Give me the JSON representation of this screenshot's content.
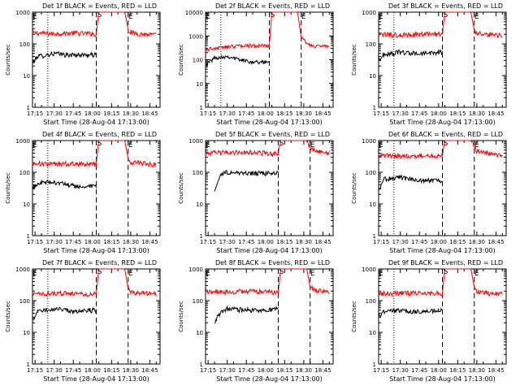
{
  "chart_data": [
    {
      "type": "line",
      "title": "Det 1f BLACK = Events, RED = LLD",
      "ylabel": "Counts/sec",
      "xlabel": "Start Time (28-Aug-04 17:13:00)",
      "xticks": [
        "17:15",
        "17:30",
        "17:45",
        "18:00",
        "18:15",
        "18:30",
        "18:45"
      ],
      "yticks": [
        "1",
        "10",
        "100",
        "1000"
      ],
      "ylim": [
        1,
        1000
      ],
      "xlim": [
        "17:13",
        "18:53"
      ],
      "markers": {
        "S": "18:03",
        "E": "18:28",
        "dotted": "17:25"
      },
      "series": [
        {
          "name": "RED = LLD",
          "color": "#ff0000",
          "times": [
            "17:13",
            "17:30",
            "17:45",
            "18:00",
            "18:03",
            "18:05",
            "18:25",
            "18:28",
            "18:30",
            "18:40",
            "18:50"
          ],
          "values": [
            220,
            210,
            220,
            210,
            200,
            1200,
            1200,
            280,
            230,
            200,
            190
          ]
        },
        {
          "name": "BLACK = Events",
          "color": "#000000",
          "times": [
            "17:13",
            "17:17",
            "17:30",
            "17:40",
            "17:50",
            "18:00",
            "18:03"
          ],
          "values": [
            25,
            40,
            50,
            45,
            45,
            45,
            45
          ]
        }
      ]
    },
    {
      "type": "line",
      "title": "Det 2f BLACK = Events, RED = LLD",
      "ylabel": "Counts/sec",
      "xlabel": "Start Time (28-Aug-04 17:13:00)",
      "xticks": [
        "17:15",
        "17:30",
        "17:45",
        "18:00",
        "18:15",
        "18:30",
        "18:45"
      ],
      "yticks": [
        "1",
        "10",
        "100",
        "1000",
        "10000"
      ],
      "ylim": [
        1,
        10000
      ],
      "xlim": [
        "17:13",
        "18:53"
      ],
      "markers": {
        "S": "18:03",
        "E": "18:28",
        "dotted": "17:25"
      },
      "series": [
        {
          "name": "RED = LLD",
          "color": "#ff0000",
          "times": [
            "17:13",
            "17:20",
            "17:30",
            "17:45",
            "18:00",
            "18:03",
            "18:05",
            "18:25",
            "18:28",
            "18:35",
            "18:50"
          ],
          "values": [
            270,
            300,
            350,
            400,
            380,
            400,
            12000,
            12000,
            800,
            400,
            350
          ]
        },
        {
          "name": "BLACK = Events",
          "color": "#000000",
          "times": [
            "17:13",
            "17:20",
            "17:30",
            "17:40",
            "17:50",
            "18:00",
            "18:03"
          ],
          "values": [
            60,
            120,
            140,
            100,
            80,
            80,
            90
          ]
        }
      ]
    },
    {
      "type": "line",
      "title": "Det 3f BLACK = Events, RED = LLD",
      "ylabel": "Counts/sec",
      "xlabel": "Start Time (28-Aug-04 17:13:00)",
      "xticks": [
        "17:15",
        "17:30",
        "17:45",
        "18:00",
        "18:15",
        "18:30",
        "18:45"
      ],
      "yticks": [
        "1",
        "10",
        "100",
        "1000"
      ],
      "ylim": [
        1,
        1000
      ],
      "xlim": [
        "17:13",
        "18:53"
      ],
      "markers": {
        "S": "18:03",
        "E": "18:28",
        "dotted": "17:25"
      },
      "series": [
        {
          "name": "RED = LLD",
          "color": "#ff0000",
          "times": [
            "17:13",
            "17:30",
            "17:45",
            "18:00",
            "18:03",
            "18:05",
            "18:25",
            "18:28",
            "18:30",
            "18:40",
            "18:50"
          ],
          "values": [
            200,
            190,
            200,
            210,
            200,
            1200,
            1200,
            260,
            220,
            200,
            180
          ]
        },
        {
          "name": "BLACK = Events",
          "color": "#000000",
          "times": [
            "17:13",
            "17:17",
            "17:30",
            "17:40",
            "17:50",
            "18:00",
            "18:03"
          ],
          "values": [
            30,
            45,
            55,
            50,
            50,
            55,
            55
          ]
        }
      ]
    },
    {
      "type": "line",
      "title": "Det 4f BLACK = Events, RED = LLD",
      "ylabel": "Counts/sec",
      "xlabel": "Start Time (28-Aug-04 17:13:00)",
      "xticks": [
        "17:15",
        "17:30",
        "17:45",
        "18:00",
        "18:15",
        "18:30",
        "18:45"
      ],
      "yticks": [
        "1",
        "10",
        "100",
        "1000"
      ],
      "ylim": [
        1,
        1000
      ],
      "xlim": [
        "17:13",
        "18:53"
      ],
      "markers": {
        "S": "18:03",
        "E": "18:28",
        "dotted": "17:25"
      },
      "series": [
        {
          "name": "RED = LLD",
          "color": "#ff0000",
          "times": [
            "17:13",
            "17:30",
            "17:45",
            "18:00",
            "18:03",
            "18:05",
            "18:25",
            "18:28",
            "18:30",
            "18:40",
            "18:50"
          ],
          "values": [
            190,
            180,
            190,
            180,
            180,
            1200,
            1200,
            260,
            210,
            190,
            170
          ]
        },
        {
          "name": "BLACK = Events",
          "color": "#000000",
          "times": [
            "17:13",
            "17:17",
            "17:30",
            "17:40",
            "17:50",
            "18:00",
            "18:03"
          ],
          "values": [
            30,
            45,
            50,
            40,
            35,
            35,
            35
          ]
        }
      ]
    },
    {
      "type": "line",
      "title": "Det 5f BLACK = Events, RED = LLD",
      "ylabel": "Counts/sec",
      "xlabel": "Start Time (28-Aug-04 17:13:00)",
      "xticks": [
        "17:15",
        "17:30",
        "17:45",
        "18:00",
        "18:15",
        "18:30",
        "18:45"
      ],
      "yticks": [
        "1",
        "10",
        "100",
        "1000"
      ],
      "ylim": [
        1,
        1000
      ],
      "xlim": [
        "17:13",
        "18:53"
      ],
      "markers": {
        "S": "18:10",
        "E": "18:35",
        "dotted": null
      },
      "series": [
        {
          "name": "RED = LLD",
          "color": "#ff0000",
          "times": [
            "17:13",
            "17:30",
            "17:45",
            "18:00",
            "18:10",
            "18:12",
            "18:32",
            "18:35",
            "18:40",
            "18:50"
          ],
          "values": [
            400,
            420,
            430,
            400,
            380,
            1200,
            1200,
            600,
            450,
            400
          ]
        },
        {
          "name": "BLACK = Events",
          "color": "#000000",
          "times": [
            "17:20",
            "17:25",
            "17:30",
            "17:45",
            "18:00",
            "18:10"
          ],
          "values": [
            25,
            90,
            100,
            95,
            90,
            100
          ]
        }
      ]
    },
    {
      "type": "line",
      "title": "Det 6f BLACK = Events, RED = LLD",
      "ylabel": "Counts/sec",
      "xlabel": "Start Time (28-Aug-04 17:13:00)",
      "xticks": [
        "17:15",
        "17:30",
        "17:45",
        "18:00",
        "18:15",
        "18:30",
        "18:45"
      ],
      "yticks": [
        "1",
        "10",
        "100",
        "1000"
      ],
      "ylim": [
        1,
        1000
      ],
      "xlim": [
        "17:13",
        "18:53"
      ],
      "markers": {
        "S": "18:03",
        "E": "18:28",
        "dotted": "17:25"
      },
      "series": [
        {
          "name": "RED = LLD",
          "color": "#ff0000",
          "times": [
            "17:13",
            "17:30",
            "17:45",
            "18:00",
            "18:03",
            "18:05",
            "18:25",
            "18:28",
            "18:30",
            "18:40",
            "18:50"
          ],
          "values": [
            340,
            330,
            340,
            320,
            330,
            1200,
            1200,
            600,
            450,
            380,
            340
          ]
        },
        {
          "name": "BLACK = Events",
          "color": "#000000",
          "times": [
            "17:13",
            "17:17",
            "17:30",
            "17:40",
            "17:50",
            "18:00",
            "18:03"
          ],
          "values": [
            25,
            60,
            70,
            60,
            55,
            55,
            55
          ]
        }
      ]
    },
    {
      "type": "line",
      "title": "Det 7f BLACK = Events, RED = LLD",
      "ylabel": "Counts/sec",
      "xlabel": "Start Time (28-Aug-04 17:13:00)",
      "xticks": [
        "17:15",
        "17:30",
        "17:45",
        "18:00",
        "18:15",
        "18:30",
        "18:45"
      ],
      "yticks": [
        "1",
        "10",
        "100",
        "1000"
      ],
      "ylim": [
        1,
        1000
      ],
      "xlim": [
        "17:13",
        "18:53"
      ],
      "markers": {
        "S": "18:03",
        "E": "18:28",
        "dotted": "17:25"
      },
      "series": [
        {
          "name": "RED = LLD",
          "color": "#ff0000",
          "times": [
            "17:13",
            "17:30",
            "17:45",
            "18:00",
            "18:03",
            "18:05",
            "18:25",
            "18:28",
            "18:30",
            "18:40",
            "18:50"
          ],
          "values": [
            160,
            170,
            170,
            160,
            160,
            1200,
            1200,
            230,
            180,
            170,
            160
          ]
        },
        {
          "name": "BLACK = Events",
          "color": "#000000",
          "times": [
            "17:13",
            "17:17",
            "17:30",
            "17:40",
            "17:50",
            "18:00",
            "18:03"
          ],
          "values": [
            25,
            45,
            55,
            50,
            45,
            50,
            50
          ]
        }
      ]
    },
    {
      "type": "line",
      "title": "Det 8f BLACK = Events, RED = LLD",
      "ylabel": "Counts/sec",
      "xlabel": "Start Time (28-Aug-04 17:13:00)",
      "xticks": [
        "17:15",
        "17:30",
        "17:45",
        "18:00",
        "18:15",
        "18:30",
        "18:45"
      ],
      "yticks": [
        "1",
        "10",
        "100",
        "1000"
      ],
      "ylim": [
        1,
        1000
      ],
      "xlim": [
        "17:13",
        "18:53"
      ],
      "markers": {
        "S": "18:10",
        "E": "18:35",
        "dotted": null
      },
      "series": [
        {
          "name": "RED = LLD",
          "color": "#ff0000",
          "times": [
            "17:13",
            "17:30",
            "17:45",
            "18:00",
            "18:10",
            "18:12",
            "18:32",
            "18:35",
            "18:40",
            "18:50"
          ],
          "values": [
            190,
            190,
            200,
            190,
            180,
            1200,
            1200,
            260,
            210,
            190
          ]
        },
        {
          "name": "BLACK = Events",
          "color": "#000000",
          "times": [
            "17:20",
            "17:25",
            "17:30",
            "17:45",
            "18:00",
            "18:10"
          ],
          "values": [
            20,
            45,
            55,
            50,
            50,
            55
          ]
        }
      ]
    },
    {
      "type": "line",
      "title": "Det 9f BLACK = Events, RED = LLD",
      "ylabel": "Counts/sec",
      "xlabel": "Start Time (28-Aug-04 17:13:00)",
      "xticks": [
        "17:15",
        "17:30",
        "17:45",
        "18:00",
        "18:15",
        "18:30",
        "18:45"
      ],
      "yticks": [
        "1",
        "10",
        "100",
        "1000"
      ],
      "ylim": [
        1,
        1000
      ],
      "xlim": [
        "17:13",
        "18:53"
      ],
      "markers": {
        "S": "18:03",
        "E": "18:28",
        "dotted": "17:25"
      },
      "series": [
        {
          "name": "RED = LLD",
          "color": "#ff0000",
          "times": [
            "17:13",
            "17:30",
            "17:45",
            "18:00",
            "18:03",
            "18:05",
            "18:25",
            "18:28",
            "18:30",
            "18:40",
            "18:50"
          ],
          "values": [
            170,
            170,
            175,
            170,
            170,
            1200,
            1200,
            260,
            190,
            170,
            160
          ]
        },
        {
          "name": "BLACK = Events",
          "color": "#000000",
          "times": [
            "17:13",
            "17:17",
            "17:30",
            "17:40",
            "17:50",
            "18:00",
            "18:03"
          ],
          "values": [
            30,
            45,
            50,
            45,
            45,
            50,
            50
          ]
        }
      ]
    }
  ]
}
